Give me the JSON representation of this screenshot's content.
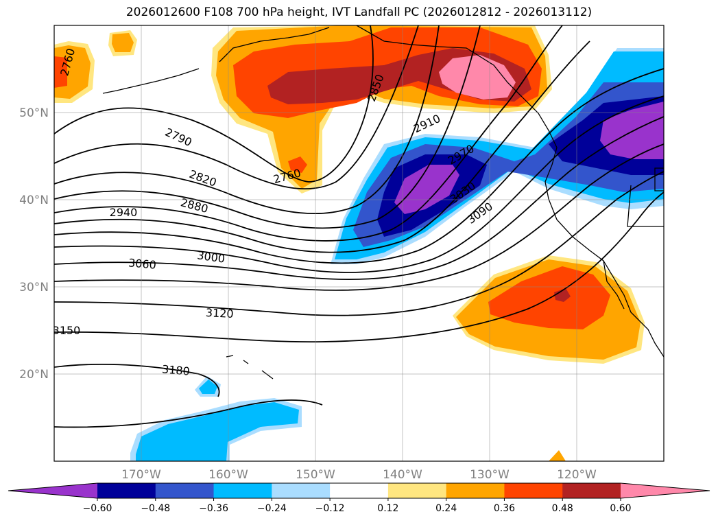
{
  "title": "2026012600 F108 700 hPa height, IVT Landfall PC (2026012812 - 2026013112)",
  "map": {
    "lon_range": [
      -180,
      -110
    ],
    "lat_range": [
      10,
      60
    ],
    "lat_ticks": [
      {
        "value": 50,
        "label": "50°N"
      },
      {
        "value": 40,
        "label": "40°N"
      },
      {
        "value": 30,
        "label": "30°N"
      },
      {
        "value": 20,
        "label": "20°N"
      }
    ],
    "lon_ticks": [
      {
        "value": -170,
        "label": "170°W"
      },
      {
        "value": -160,
        "label": "160°W"
      },
      {
        "value": -150,
        "label": "150°W"
      },
      {
        "value": -140,
        "label": "140°W"
      },
      {
        "value": -130,
        "label": "130°W"
      },
      {
        "value": -120,
        "label": "120°W"
      }
    ],
    "grid": true
  },
  "contour_labels": [
    "2760",
    "2790",
    "2820",
    "2850",
    "2880",
    "2910",
    "2940",
    "2970",
    "3000",
    "3030",
    "3060",
    "3090",
    "3120",
    "3150",
    "3180"
  ],
  "colorbar": {
    "levels": [
      "−0.60",
      "−0.48",
      "−0.36",
      "−0.24",
      "−0.12",
      "0.12",
      "0.24",
      "0.36",
      "0.48",
      "0.60"
    ],
    "colors": [
      "#9933cc",
      "#000099",
      "#3355cc",
      "#00bbff",
      "#aaddff",
      "#ffffff",
      "#ffe680",
      "#ffa500",
      "#ff4400",
      "#b22222",
      "#ff88aa"
    ]
  }
}
